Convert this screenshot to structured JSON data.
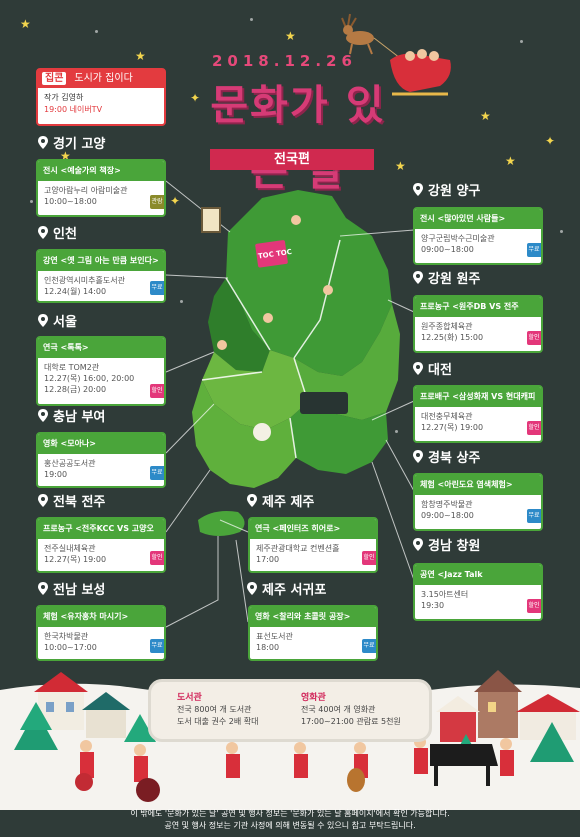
{
  "header": {
    "date": "2018.12.26",
    "title": "문화가 있는 날",
    "badge": "전국편"
  },
  "promo": {
    "logo": "집콘",
    "tagline": "도시가 집이다",
    "line1": "작가 김영하",
    "line2": "19:00 네이버TV"
  },
  "regions": [
    {
      "name": "경기 고양",
      "category": "전시 <예술가의 책장>",
      "lines": [
        "고양아람누리 아람미술관",
        "10:00~18:00"
      ],
      "tag": "관람가"
    },
    {
      "name": "인천",
      "category": "강연 <옛 그림 아는 만큼 보인다>",
      "lines": [
        "인천광역시미추홀도서관",
        "12.24(월) 14:00"
      ],
      "tag": "무료"
    },
    {
      "name": "서울",
      "category": "연극 <톡톡>",
      "lines": [
        "대학로 TOM2관",
        "12.27(목) 16:00, 20:00",
        "12.28(금) 20:00"
      ],
      "tag": "할인"
    },
    {
      "name": "충남 부여",
      "category": "영화 <모아나>",
      "lines": [
        "홍산공공도서관",
        "19:00"
      ],
      "tag": "무료"
    },
    {
      "name": "전북 전주",
      "category": "프로농구 <전주KCC VS 고양오리온>",
      "lines": [
        "전주실내체육관",
        "12.27(목) 19:00"
      ],
      "tag": "할인"
    },
    {
      "name": "전남 보성",
      "category": "체험 <유자홍차 마시기>",
      "lines": [
        "한국차박물관",
        "10:00~17:00"
      ],
      "tag": "무료"
    },
    {
      "name": "강원 양구",
      "category": "전시 <많아있던 사람들>",
      "lines": [
        "양구군립박수근미술관",
        "09:00~18:00"
      ],
      "tag": "무료"
    },
    {
      "name": "강원 원주",
      "category": "프로농구 <원주DB VS 전주KCC>",
      "lines": [
        "원주종합체육관",
        "12.25(화) 15:00"
      ],
      "tag": "할인"
    },
    {
      "name": "대전",
      "category": "프로배구 <삼성화재 VS 현대캐피탈>",
      "lines": [
        "대전충무체육관",
        "12.27(목) 19:00"
      ],
      "tag": "할인"
    },
    {
      "name": "경북 상주",
      "category": "체험 <아린도요 염색체험>",
      "lines": [
        "함창명주박물관",
        "09:00~18:00"
      ],
      "tag": "무료"
    },
    {
      "name": "경남 창원",
      "category": "공연 <Jazz Talk Christmas>",
      "lines": [
        "3.15아트센터",
        "19:30"
      ],
      "tag": "할인"
    },
    {
      "name": "제주 제주",
      "category": "연극 <페인터즈 히어로>",
      "lines": [
        "제주관광대학교 컨벤션홀",
        "17:00"
      ],
      "tag": "할인"
    },
    {
      "name": "제주 서귀포",
      "category": "영화 <찰리와 초콜릿 공장>",
      "lines": [
        "표선도서관",
        "18:00"
      ],
      "tag": "무료"
    }
  ],
  "map_label": "TOC TOC",
  "info": {
    "library_title": "도서관",
    "library_lines": [
      "전국 800여 개 도서관",
      "도서 대출 권수 2배 확대"
    ],
    "cinema_title": "영화관",
    "cinema_lines": [
      "전국 400여 개 영화관",
      "17:00~21:00  관람료 5천원"
    ]
  },
  "footer": [
    "이 밖에도 '문화가 있는 날' 공연 및 행사 정보는 '문화가 있는 날 홈페이지'에서 확인 가능합니다.",
    "공연 및 행사 정보는 기관 사정에 의해 변동될 수 있으니 참고 부탁드립니다."
  ],
  "colors": {
    "background": "#2f3b38",
    "green": "#4aa53a",
    "pink": "#e3377a",
    "blue": "#2d8ac8",
    "title": "#d63b76",
    "badge": "#d0294f"
  },
  "icons": [
    "location-pin-icon",
    "star-icon",
    "reindeer-sleigh-icon",
    "christmas-tree-icon",
    "house-icon",
    "piano-icon"
  ]
}
